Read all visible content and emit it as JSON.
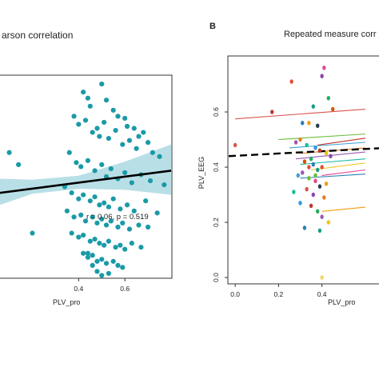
{
  "panels": [
    {
      "id": "A",
      "title": "arson correlation",
      "xlabel": "PLV_pro",
      "annotation": "r = 0.06,  p = 0.519"
    },
    {
      "id": "B",
      "panel_letter": "B",
      "title": "Repeated measure corr",
      "xlabel": "PLV_pro",
      "ylabel": "PLV_EEG"
    }
  ],
  "chart_data": [
    {
      "type": "scatter",
      "title": "arson correlation",
      "xlabel": "PLV_pro",
      "ylabel": "",
      "x_ticks": [
        0.4,
        0.6
      ],
      "xlim": [
        0.06,
        0.8
      ],
      "ylim": [
        0.0,
        1.0
      ],
      "grid": false,
      "annotation": "r = 0.06,  p = 0.519",
      "point_color": "#1a9aa6",
      "fit_line": {
        "x": [
          0.06,
          0.8
        ],
        "y": [
          0.42,
          0.53
        ],
        "color": "#000000"
      },
      "confidence_band": {
        "x": [
          0.06,
          0.2,
          0.4,
          0.6,
          0.8
        ],
        "lower": [
          0.36,
          0.415,
          0.44,
          0.435,
          0.41
        ],
        "upper": [
          0.49,
          0.485,
          0.505,
          0.575,
          0.66
        ],
        "color": "#b9dfe6"
      },
      "x": [
        0.42,
        0.44,
        0.45,
        0.5,
        0.52,
        0.55,
        0.57,
        0.6,
        0.61,
        0.64,
        0.66,
        0.68,
        0.7,
        0.38,
        0.4,
        0.43,
        0.46,
        0.48,
        0.49,
        0.51,
        0.53,
        0.56,
        0.59,
        0.62,
        0.65,
        0.72,
        0.75,
        0.36,
        0.39,
        0.41,
        0.44,
        0.47,
        0.5,
        0.52,
        0.54,
        0.57,
        0.6,
        0.63,
        0.67,
        0.71,
        0.77,
        0.34,
        0.37,
        0.4,
        0.42,
        0.45,
        0.47,
        0.49,
        0.51,
        0.53,
        0.55,
        0.58,
        0.61,
        0.64,
        0.69,
        0.74,
        0.35,
        0.38,
        0.41,
        0.43,
        0.46,
        0.48,
        0.5,
        0.52,
        0.54,
        0.57,
        0.59,
        0.62,
        0.66,
        0.7,
        0.37,
        0.4,
        0.42,
        0.45,
        0.47,
        0.49,
        0.51,
        0.53,
        0.56,
        0.58,
        0.6,
        0.63,
        0.67,
        0.42,
        0.44,
        0.46,
        0.48,
        0.5,
        0.52,
        0.55,
        0.57,
        0.59,
        0.48,
        0.5,
        0.53,
        0.44,
        0.46,
        0.1,
        0.14,
        0.2
      ],
      "y": [
        0.92,
        0.89,
        0.85,
        0.96,
        0.88,
        0.83,
        0.8,
        0.79,
        0.75,
        0.74,
        0.7,
        0.72,
        0.67,
        0.8,
        0.76,
        0.78,
        0.72,
        0.74,
        0.7,
        0.77,
        0.69,
        0.73,
        0.66,
        0.68,
        0.64,
        0.62,
        0.6,
        0.62,
        0.57,
        0.55,
        0.58,
        0.53,
        0.56,
        0.5,
        0.54,
        0.49,
        0.52,
        0.47,
        0.51,
        0.48,
        0.46,
        0.45,
        0.42,
        0.39,
        0.41,
        0.38,
        0.4,
        0.36,
        0.37,
        0.35,
        0.39,
        0.34,
        0.36,
        0.33,
        0.38,
        0.32,
        0.33,
        0.3,
        0.31,
        0.28,
        0.3,
        0.27,
        0.29,
        0.26,
        0.28,
        0.25,
        0.27,
        0.24,
        0.26,
        0.25,
        0.22,
        0.2,
        0.21,
        0.18,
        0.19,
        0.17,
        0.16,
        0.18,
        0.15,
        0.16,
        0.14,
        0.17,
        0.15,
        0.12,
        0.1,
        0.11,
        0.08,
        0.09,
        0.07,
        0.08,
        0.06,
        0.05,
        0.03,
        0.01,
        0.02,
        0.12,
        0.06,
        0.62,
        0.56,
        0.22
      ]
    },
    {
      "type": "scatter",
      "title": "Repeated measure corr",
      "xlabel": "PLV_pro",
      "ylabel": "PLV_EEG",
      "x_ticks": [
        0.0,
        0.2,
        0.4
      ],
      "y_ticks": [
        0.0,
        0.2,
        0.4,
        0.6
      ],
      "xlim": [
        -0.03,
        0.7
      ],
      "ylim": [
        -0.02,
        0.8
      ],
      "grid": false,
      "overall_fit": {
        "x": [
          -0.03,
          0.7
        ],
        "y": [
          0.44,
          0.47
        ],
        "style": "dashed",
        "color": "#000000"
      },
      "subject_lines": [
        {
          "x": [
            0.0,
            0.6
          ],
          "y": [
            0.575,
            0.61
          ],
          "color": "#d9534f"
        },
        {
          "x": [
            0.2,
            0.6
          ],
          "y": [
            0.5,
            0.52
          ],
          "color": "#6cbb3c"
        },
        {
          "x": [
            0.25,
            0.6
          ],
          "y": [
            0.47,
            0.49
          ],
          "color": "#3aa0d8"
        },
        {
          "x": [
            0.3,
            0.6
          ],
          "y": [
            0.45,
            0.47
          ],
          "color": "#e67e22"
        },
        {
          "x": [
            0.28,
            0.6
          ],
          "y": [
            0.43,
            0.455
          ],
          "color": "#9b59b6"
        },
        {
          "x": [
            0.3,
            0.6
          ],
          "y": [
            0.41,
            0.43
          ],
          "color": "#1abc9c"
        },
        {
          "x": [
            0.35,
            0.6
          ],
          "y": [
            0.39,
            0.415
          ],
          "color": "#f1c40f"
        },
        {
          "x": [
            0.4,
            0.6
          ],
          "y": [
            0.37,
            0.39
          ],
          "color": "#e84393"
        },
        {
          "x": [
            0.3,
            0.6
          ],
          "y": [
            0.36,
            0.375
          ],
          "color": "#2980b9"
        },
        {
          "x": [
            0.38,
            0.6
          ],
          "y": [
            0.48,
            0.505
          ],
          "color": "#c0392b"
        },
        {
          "x": [
            0.4,
            0.6
          ],
          "y": [
            0.24,
            0.255
          ],
          "color": "#f39c12"
        }
      ],
      "x": [
        0.0,
        0.17,
        0.26,
        0.31,
        0.4,
        0.41,
        0.43,
        0.45,
        0.36,
        0.34,
        0.38,
        0.3,
        0.28,
        0.33,
        0.37,
        0.39,
        0.42,
        0.44,
        0.35,
        0.32,
        0.36,
        0.4,
        0.38,
        0.31,
        0.29,
        0.34,
        0.37,
        0.42,
        0.39,
        0.33,
        0.27,
        0.36,
        0.41,
        0.3,
        0.35,
        0.38,
        0.4,
        0.43,
        0.32,
        0.39,
        0.4,
        0.34,
        0.37
      ],
      "y": [
        0.48,
        0.6,
        0.71,
        0.56,
        0.73,
        0.76,
        0.65,
        0.61,
        0.62,
        0.56,
        0.55,
        0.5,
        0.49,
        0.48,
        0.47,
        0.46,
        0.45,
        0.44,
        0.43,
        0.42,
        0.41,
        0.4,
        0.39,
        0.38,
        0.37,
        0.36,
        0.35,
        0.34,
        0.33,
        0.32,
        0.31,
        0.3,
        0.29,
        0.27,
        0.26,
        0.24,
        0.22,
        0.2,
        0.18,
        0.17,
        0.0,
        0.4,
        0.37
      ],
      "point_colors": [
        "#d9534f",
        "#c0392b",
        "#e74c3c",
        "#2980b9",
        "#8e44ad",
        "#e84393",
        "#27ae60",
        "#d35400",
        "#16a085",
        "#f39c12",
        "#2c3e50",
        "#e67e22",
        "#9b59b6",
        "#1abc9c",
        "#3498db",
        "#c0392b",
        "#f1c40f",
        "#8e44ad",
        "#27ae60",
        "#d35400",
        "#2980b9",
        "#e74c3c",
        "#16a085",
        "#9b59b6",
        "#3aa0d8",
        "#6cbb3c",
        "#e84393",
        "#f39c12",
        "#2c3e50",
        "#d9534f",
        "#1abc9c",
        "#8e44ad",
        "#e67e22",
        "#3498db",
        "#c0392b",
        "#27ae60",
        "#9b59b6",
        "#f1c40f",
        "#2980b9",
        "#16a085",
        "#f5d76e",
        "#e74c3c",
        "#6cbb3c"
      ]
    }
  ]
}
